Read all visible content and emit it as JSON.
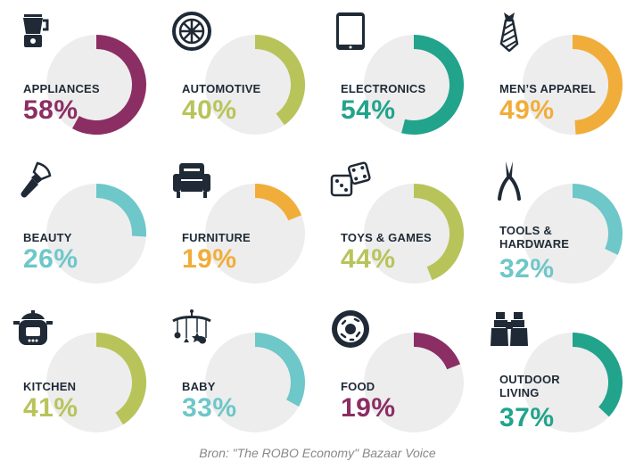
{
  "chart_data": {
    "type": "donut",
    "source": "Bron: \"The ROBO Economy\" Bazaar Voice",
    "categories": [
      {
        "label": "APPLIANCES",
        "value_text": "58%",
        "value": 58,
        "color": "#8b2e63",
        "icon": "blender-icon"
      },
      {
        "label": "AUTOMOTIVE",
        "value_text": "40%",
        "value": 40,
        "color": "#b8c45a",
        "icon": "tire-icon"
      },
      {
        "label": "ELECTRONICS",
        "value_text": "54%",
        "value": 54,
        "color": "#22a38c",
        "icon": "tablet-icon"
      },
      {
        "label": "MEN’S APPAREL",
        "value_text": "49%",
        "value": 49,
        "color": "#f1ad3a",
        "icon": "necktie-icon"
      },
      {
        "label": "BEAUTY",
        "value_text": "26%",
        "value": 26,
        "color": "#6ec7c8",
        "icon": "makeup-brush-icon"
      },
      {
        "label": "FURNITURE",
        "value_text": "19%",
        "value": 19,
        "color": "#f1ad3a",
        "icon": "armchair-icon"
      },
      {
        "label": "TOYS & GAMES",
        "value_text": "44%",
        "value": 44,
        "color": "#b8c45a",
        "icon": "dice-icon"
      },
      {
        "label": "TOOLS &\nHARDWARE",
        "value_text": "32%",
        "value": 32,
        "color": "#6ec7c8",
        "icon": "pliers-icon"
      },
      {
        "label": "KITCHEN",
        "value_text": "41%",
        "value": 41,
        "color": "#b8c45a",
        "icon": "cooking-pot-icon"
      },
      {
        "label": "BABY",
        "value_text": "33%",
        "value": 33,
        "color": "#6ec7c8",
        "icon": "baby-mobile-icon"
      },
      {
        "label": "FOOD",
        "value_text": "19%",
        "value": 19,
        "color": "#8b2e63",
        "icon": "donut-icon"
      },
      {
        "label": "OUTDOOR\nLIVING",
        "value_text": "37%",
        "value": 37,
        "color": "#22a38c",
        "icon": "binoculars-icon"
      }
    ],
    "track_color": "#ededed"
  }
}
